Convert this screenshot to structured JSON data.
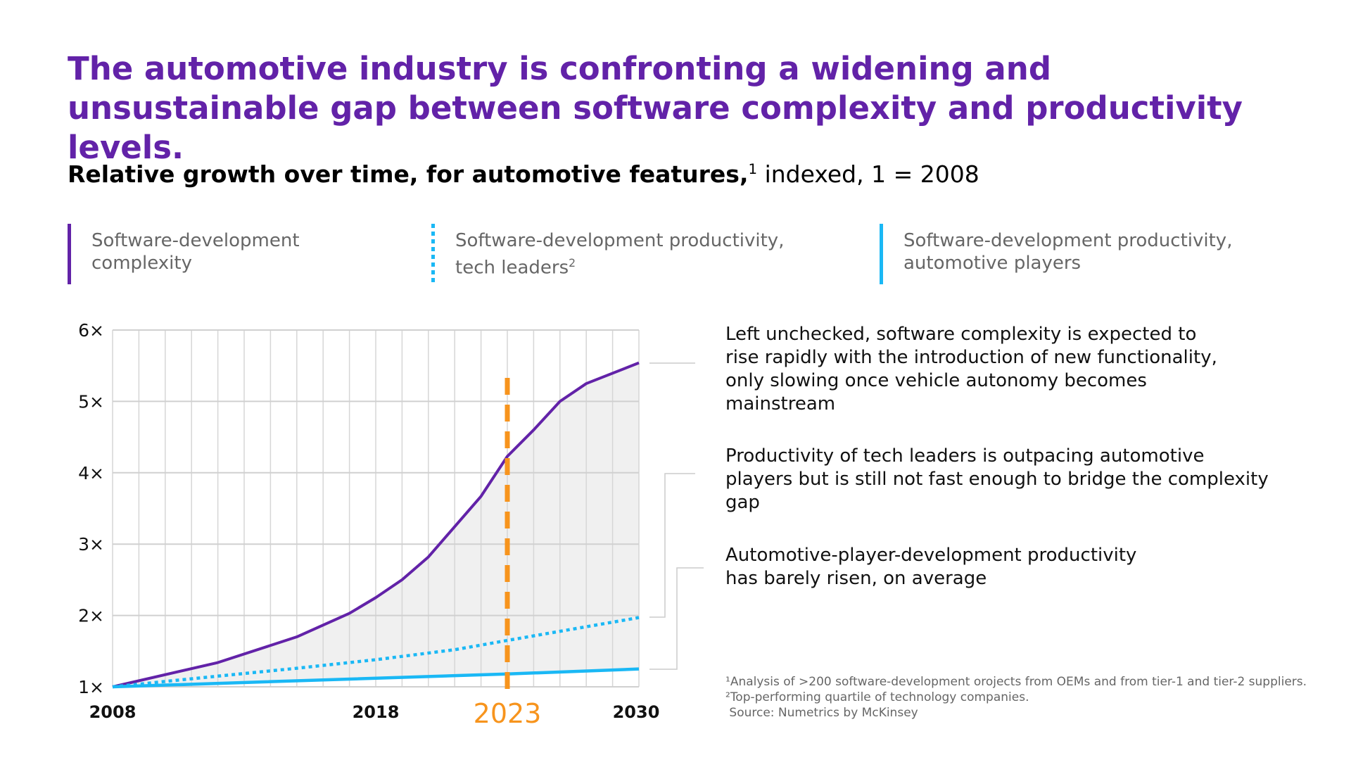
{
  "title": "The automotive industry is confronting a widening and unsustainable gap between software complexity and productivity levels.",
  "subtitle": {
    "bold": "Relative growth over time, for automotive features,",
    "sup": "1",
    "rest": " indexed, 1 = 2008"
  },
  "legend": [
    {
      "label": "Software-development complexity",
      "color": "#6222a8",
      "style": "solid"
    },
    {
      "label": "Software-development productivity, tech leaders",
      "sup": "2",
      "color": "#1ab8f5",
      "style": "dotted"
    },
    {
      "label": "Software-development productivity, automotive players",
      "color": "#1ab8f5",
      "style": "solid"
    }
  ],
  "annotations": [
    "Left unchecked, software complexity is expected to rise rapidly with the introduction of new functionality, only slowing once vehicle autonomy becomes mainstream",
    "Productivity of tech leaders is outpacing automotive players but is still not fast enough to bridge the complexity gap",
    "Automotive-player-development productivity has barely risen, on average"
  ],
  "footnotes": [
    "¹Analysis of >200 software-development orojects from OEMs and from tier-1 and tier-2 suppliers.",
    "²Top-performing quartile of technology companies.",
    " Source: Numetrics by McKinsey"
  ],
  "chart_data": {
    "type": "line",
    "ylim": [
      1,
      6
    ],
    "yticks": [
      "1×",
      "2×",
      "3×",
      "4×",
      "5×",
      "6×"
    ],
    "ytick_values": [
      1,
      2,
      3,
      4,
      5,
      6
    ],
    "xticks": [
      "2008",
      "2018",
      "2023",
      "2030"
    ],
    "xtick_values": [
      2008,
      2018,
      2023,
      2030
    ],
    "highlight_year": 2023,
    "highlight_color": "#f7941d",
    "grid": true,
    "gap_fill": "#f0f0f0",
    "series": [
      {
        "name": "Software-development complexity",
        "color": "#6222a8",
        "style": "solid",
        "x": [
          2008,
          2012,
          2015,
          2017,
          2018,
          2019,
          2020,
          2022,
          2023,
          2024,
          2025,
          2026,
          2030
        ],
        "y": [
          1,
          1.34,
          1.7,
          2.03,
          2.25,
          2.5,
          2.82,
          3.67,
          4.23,
          4.6,
          5.0,
          5.25,
          5.54
        ]
      },
      {
        "name": "Software-development productivity, tech leaders",
        "color": "#1ab8f5",
        "style": "dotted",
        "x": [
          2008,
          2012,
          2015,
          2018,
          2021,
          2023,
          2030
        ],
        "y": [
          1,
          1.15,
          1.26,
          1.38,
          1.52,
          1.65,
          1.97
        ]
      },
      {
        "name": "Software-development productivity, automotive players",
        "color": "#1ab8f5",
        "style": "solid",
        "x": [
          2008,
          2023,
          2030
        ],
        "y": [
          1,
          1.18,
          1.25
        ]
      }
    ]
  }
}
